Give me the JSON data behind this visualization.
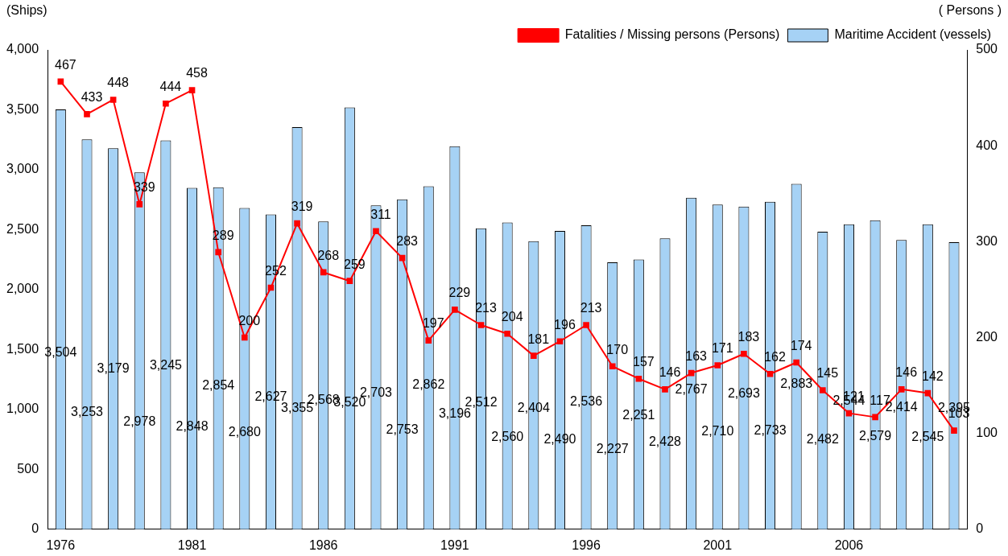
{
  "chart_data": {
    "type": "bar",
    "ylabel": "(Ships)",
    "y2label": "( Persons )",
    "categories": [
      "1976",
      null,
      null,
      null,
      null,
      "1981",
      null,
      null,
      null,
      null,
      "1986",
      null,
      null,
      null,
      null,
      "1991",
      null,
      null,
      null,
      null,
      "1996",
      null,
      null,
      null,
      null,
      "2001",
      null,
      null,
      null,
      null,
      "2006",
      null,
      null,
      null,
      null
    ],
    "series": [
      {
        "name": "Maritime Accident (vessels)",
        "type": "bar",
        "color": "#a6d2f5",
        "values": [
          3504,
          3253,
          3179,
          2978,
          3245,
          2848,
          2854,
          2680,
          2627,
          3355,
          2568,
          3520,
          2703,
          2753,
          2862,
          3196,
          2512,
          2560,
          2404,
          2490,
          2536,
          2227,
          2251,
          2428,
          2767,
          2710,
          2693,
          2733,
          2883,
          2482,
          2544,
          2579,
          2414,
          2545,
          2395
        ],
        "value_labels": [
          "3,504",
          "3,253",
          "3,179",
          "2,978",
          "3,245",
          "2,848",
          "2,854",
          "2,680",
          "2,627",
          "3,355",
          "2,568",
          "3,520",
          "2,703",
          "2,753",
          "2,862",
          "3,196",
          "2,512",
          "2,560",
          "2,404",
          "2,490",
          "2,536",
          "2,227",
          "2,251",
          "2,428",
          "2,767",
          "2,710",
          "2,693",
          "2,733",
          "2,883",
          "2,482",
          "2,544",
          "2,579",
          "2,414",
          "2,545",
          "2,395"
        ]
      },
      {
        "name": "Fatalities / Missing persons (Persons)",
        "type": "line",
        "axis": "y2",
        "color": "#ff0000",
        "values": [
          467,
          433,
          448,
          339,
          444,
          458,
          289,
          200,
          252,
          319,
          268,
          259,
          311,
          283,
          197,
          229,
          213,
          204,
          181,
          196,
          213,
          170,
          157,
          146,
          163,
          171,
          183,
          162,
          174,
          145,
          121,
          117,
          146,
          142,
          103
        ]
      }
    ],
    "ylim": [
      0,
      4000
    ],
    "yticks": [
      0,
      500,
      {
        "value": 1000,
        "label": "1,000"
      },
      {
        "value": 1500,
        "label": "1,500"
      },
      {
        "value": 2000,
        "label": "2,000"
      },
      {
        "value": 2500,
        "label": "2,500"
      },
      {
        "value": 3000,
        "label": "3,000"
      },
      {
        "value": 3500,
        "label": "3,500"
      },
      {
        "value": 4000,
        "label": "4,000"
      }
    ],
    "y2lim": [
      0,
      500
    ],
    "y2ticks": [
      0,
      100,
      200,
      300,
      400,
      500
    ],
    "data_labels": true,
    "legend": "top right",
    "grid": false,
    "marker": "square",
    "line_style": "solid"
  }
}
